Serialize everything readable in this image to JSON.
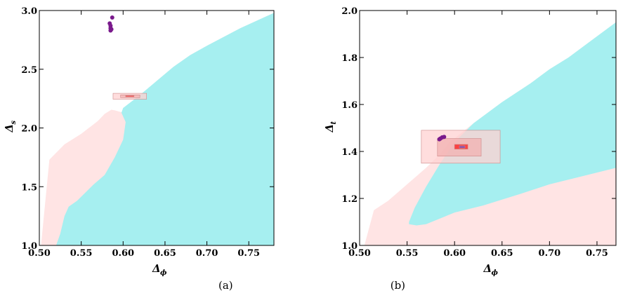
{
  "colors": {
    "cyan_region": "#a6eff0",
    "pink_region": "#ffe4e4",
    "purple_points": "#7a1a8c",
    "box_light": "#ffd2d2",
    "box_mid": "#f2b0b0",
    "box_red": "#ff1a1a",
    "box_blue": "#6a5acd"
  },
  "chart_data": [
    {
      "type": "area",
      "xlabel": "Δ",
      "xlabel_sub": "ϕ",
      "ylabel": "Δ",
      "ylabel_sub": "s",
      "xlim": [
        0.5,
        0.78
      ],
      "ylim": [
        1.0,
        3.0
      ],
      "xticks": [
        "0.50",
        "0.55",
        "0.60",
        "0.65",
        "0.70",
        "0.75"
      ],
      "xtick_values": [
        0.5,
        0.55,
        0.6,
        0.65,
        0.7,
        0.75
      ],
      "yticks": [
        "1.0",
        "1.5",
        "2.0",
        "2.5",
        "3.0"
      ],
      "ytick_values": [
        1.0,
        1.5,
        2.0,
        2.5,
        3.0
      ],
      "regions": [
        {
          "color_key": "pink_region",
          "points": [
            [
              0.502,
              1.0
            ],
            [
              0.512,
              1.73
            ],
            [
              0.53,
              1.86
            ],
            [
              0.55,
              1.95
            ],
            [
              0.57,
              2.06
            ],
            [
              0.578,
              2.12
            ],
            [
              0.586,
              2.155
            ],
            [
              0.59,
              2.15
            ],
            [
              0.6,
              2.13
            ],
            [
              0.62,
              2.27
            ],
            [
              0.64,
              2.4
            ],
            [
              0.66,
              2.52
            ],
            [
              0.68,
              2.62
            ],
            [
              0.7,
              2.7
            ],
            [
              0.74,
              2.85
            ],
            [
              0.78,
              2.98
            ],
            [
              0.78,
              1.0
            ]
          ]
        },
        {
          "color_key": "cyan_region",
          "points": [
            [
              0.52,
              1.0
            ],
            [
              0.525,
              1.1
            ],
            [
              0.53,
              1.25
            ],
            [
              0.535,
              1.33
            ],
            [
              0.545,
              1.38
            ],
            [
              0.555,
              1.45
            ],
            [
              0.565,
              1.52
            ],
            [
              0.578,
              1.6
            ],
            [
              0.59,
              1.75
            ],
            [
              0.6,
              1.9
            ],
            [
              0.603,
              2.05
            ],
            [
              0.598,
              2.13
            ],
            [
              0.6,
              2.17
            ],
            [
              0.62,
              2.28
            ],
            [
              0.64,
              2.4
            ],
            [
              0.66,
              2.52
            ],
            [
              0.68,
              2.62
            ],
            [
              0.7,
              2.7
            ],
            [
              0.74,
              2.85
            ],
            [
              0.78,
              2.98
            ],
            [
              0.78,
              1.0
            ]
          ]
        }
      ],
      "boxes": [
        {
          "color_key": "box_light",
          "x": [
            0.588,
            0.628
          ],
          "y": [
            2.245,
            2.295
          ]
        },
        {
          "color_key": "box_mid",
          "x": [
            0.597,
            0.62
          ],
          "y": [
            2.258,
            2.282
          ]
        },
        {
          "color_key": "box_red",
          "x": [
            0.603,
            0.613
          ],
          "y": [
            2.266,
            2.275
          ]
        }
      ],
      "points": [
        [
          0.585,
          2.83
        ],
        [
          0.585,
          2.85
        ],
        [
          0.585,
          2.87
        ],
        [
          0.584,
          2.89
        ],
        [
          0.586,
          2.84
        ],
        [
          0.587,
          2.94
        ]
      ]
    },
    {
      "type": "area",
      "xlabel": "Δ",
      "xlabel_sub": "ϕ",
      "ylabel": "Δ",
      "ylabel_sub": "t",
      "xlim": [
        0.5,
        0.77
      ],
      "ylim": [
        1.0,
        2.0
      ],
      "xticks": [
        "0.50",
        "0.55",
        "0.60",
        "0.65",
        "0.70",
        "0.75"
      ],
      "xtick_values": [
        0.5,
        0.55,
        0.6,
        0.65,
        0.7,
        0.75
      ],
      "yticks": [
        "1.0",
        "1.2",
        "1.4",
        "1.6",
        "1.8",
        "2.0"
      ],
      "ytick_values": [
        1.0,
        1.2,
        1.4,
        1.6,
        1.8,
        2.0
      ],
      "regions": [
        {
          "color_key": "pink_region",
          "points": [
            [
              0.505,
              1.0
            ],
            [
              0.515,
              1.15
            ],
            [
              0.53,
              1.19
            ],
            [
              0.55,
              1.26
            ],
            [
              0.57,
              1.33
            ],
            [
              0.585,
              1.39
            ],
            [
              0.595,
              1.44
            ],
            [
              0.62,
              1.52
            ],
            [
              0.65,
              1.61
            ],
            [
              0.68,
              1.69
            ],
            [
              0.7,
              1.75
            ],
            [
              0.72,
              1.8
            ],
            [
              0.74,
              1.86
            ],
            [
              0.77,
              1.95
            ],
            [
              0.77,
              1.0
            ]
          ]
        },
        {
          "color_key": "cyan_region",
          "points": [
            [
              0.552,
              1.1
            ],
            [
              0.558,
              1.16
            ],
            [
              0.57,
              1.25
            ],
            [
              0.585,
              1.35
            ],
            [
              0.6,
              1.44
            ],
            [
              0.62,
              1.52
            ],
            [
              0.65,
              1.61
            ],
            [
              0.68,
              1.69
            ],
            [
              0.7,
              1.75
            ],
            [
              0.72,
              1.8
            ],
            [
              0.74,
              1.86
            ],
            [
              0.77,
              1.95
            ],
            [
              0.77,
              1.33
            ],
            [
              0.74,
              1.3
            ],
            [
              0.7,
              1.26
            ],
            [
              0.67,
              1.22
            ],
            [
              0.63,
              1.17
            ],
            [
              0.6,
              1.14
            ],
            [
              0.57,
              1.09
            ],
            [
              0.56,
              1.085
            ],
            [
              0.552,
              1.09
            ]
          ]
        }
      ],
      "boxes": [
        {
          "color_key": "box_light",
          "x": [
            0.565,
            0.648
          ],
          "y": [
            1.35,
            1.49
          ]
        },
        {
          "color_key": "box_mid",
          "x": [
            0.582,
            0.628
          ],
          "y": [
            1.38,
            1.455
          ]
        },
        {
          "color_key": "box_red",
          "x": [
            0.6,
            0.614
          ],
          "y": [
            1.41,
            1.43
          ]
        },
        {
          "color_key": "box_blue",
          "x": [
            0.605,
            0.611
          ],
          "y": [
            1.414,
            1.424
          ]
        }
      ],
      "points": [
        [
          0.585,
          1.455
        ],
        [
          0.587,
          1.46
        ],
        [
          0.589,
          1.462
        ],
        [
          0.584,
          1.452
        ]
      ]
    }
  ],
  "caption": "(a)                                               (b)"
}
